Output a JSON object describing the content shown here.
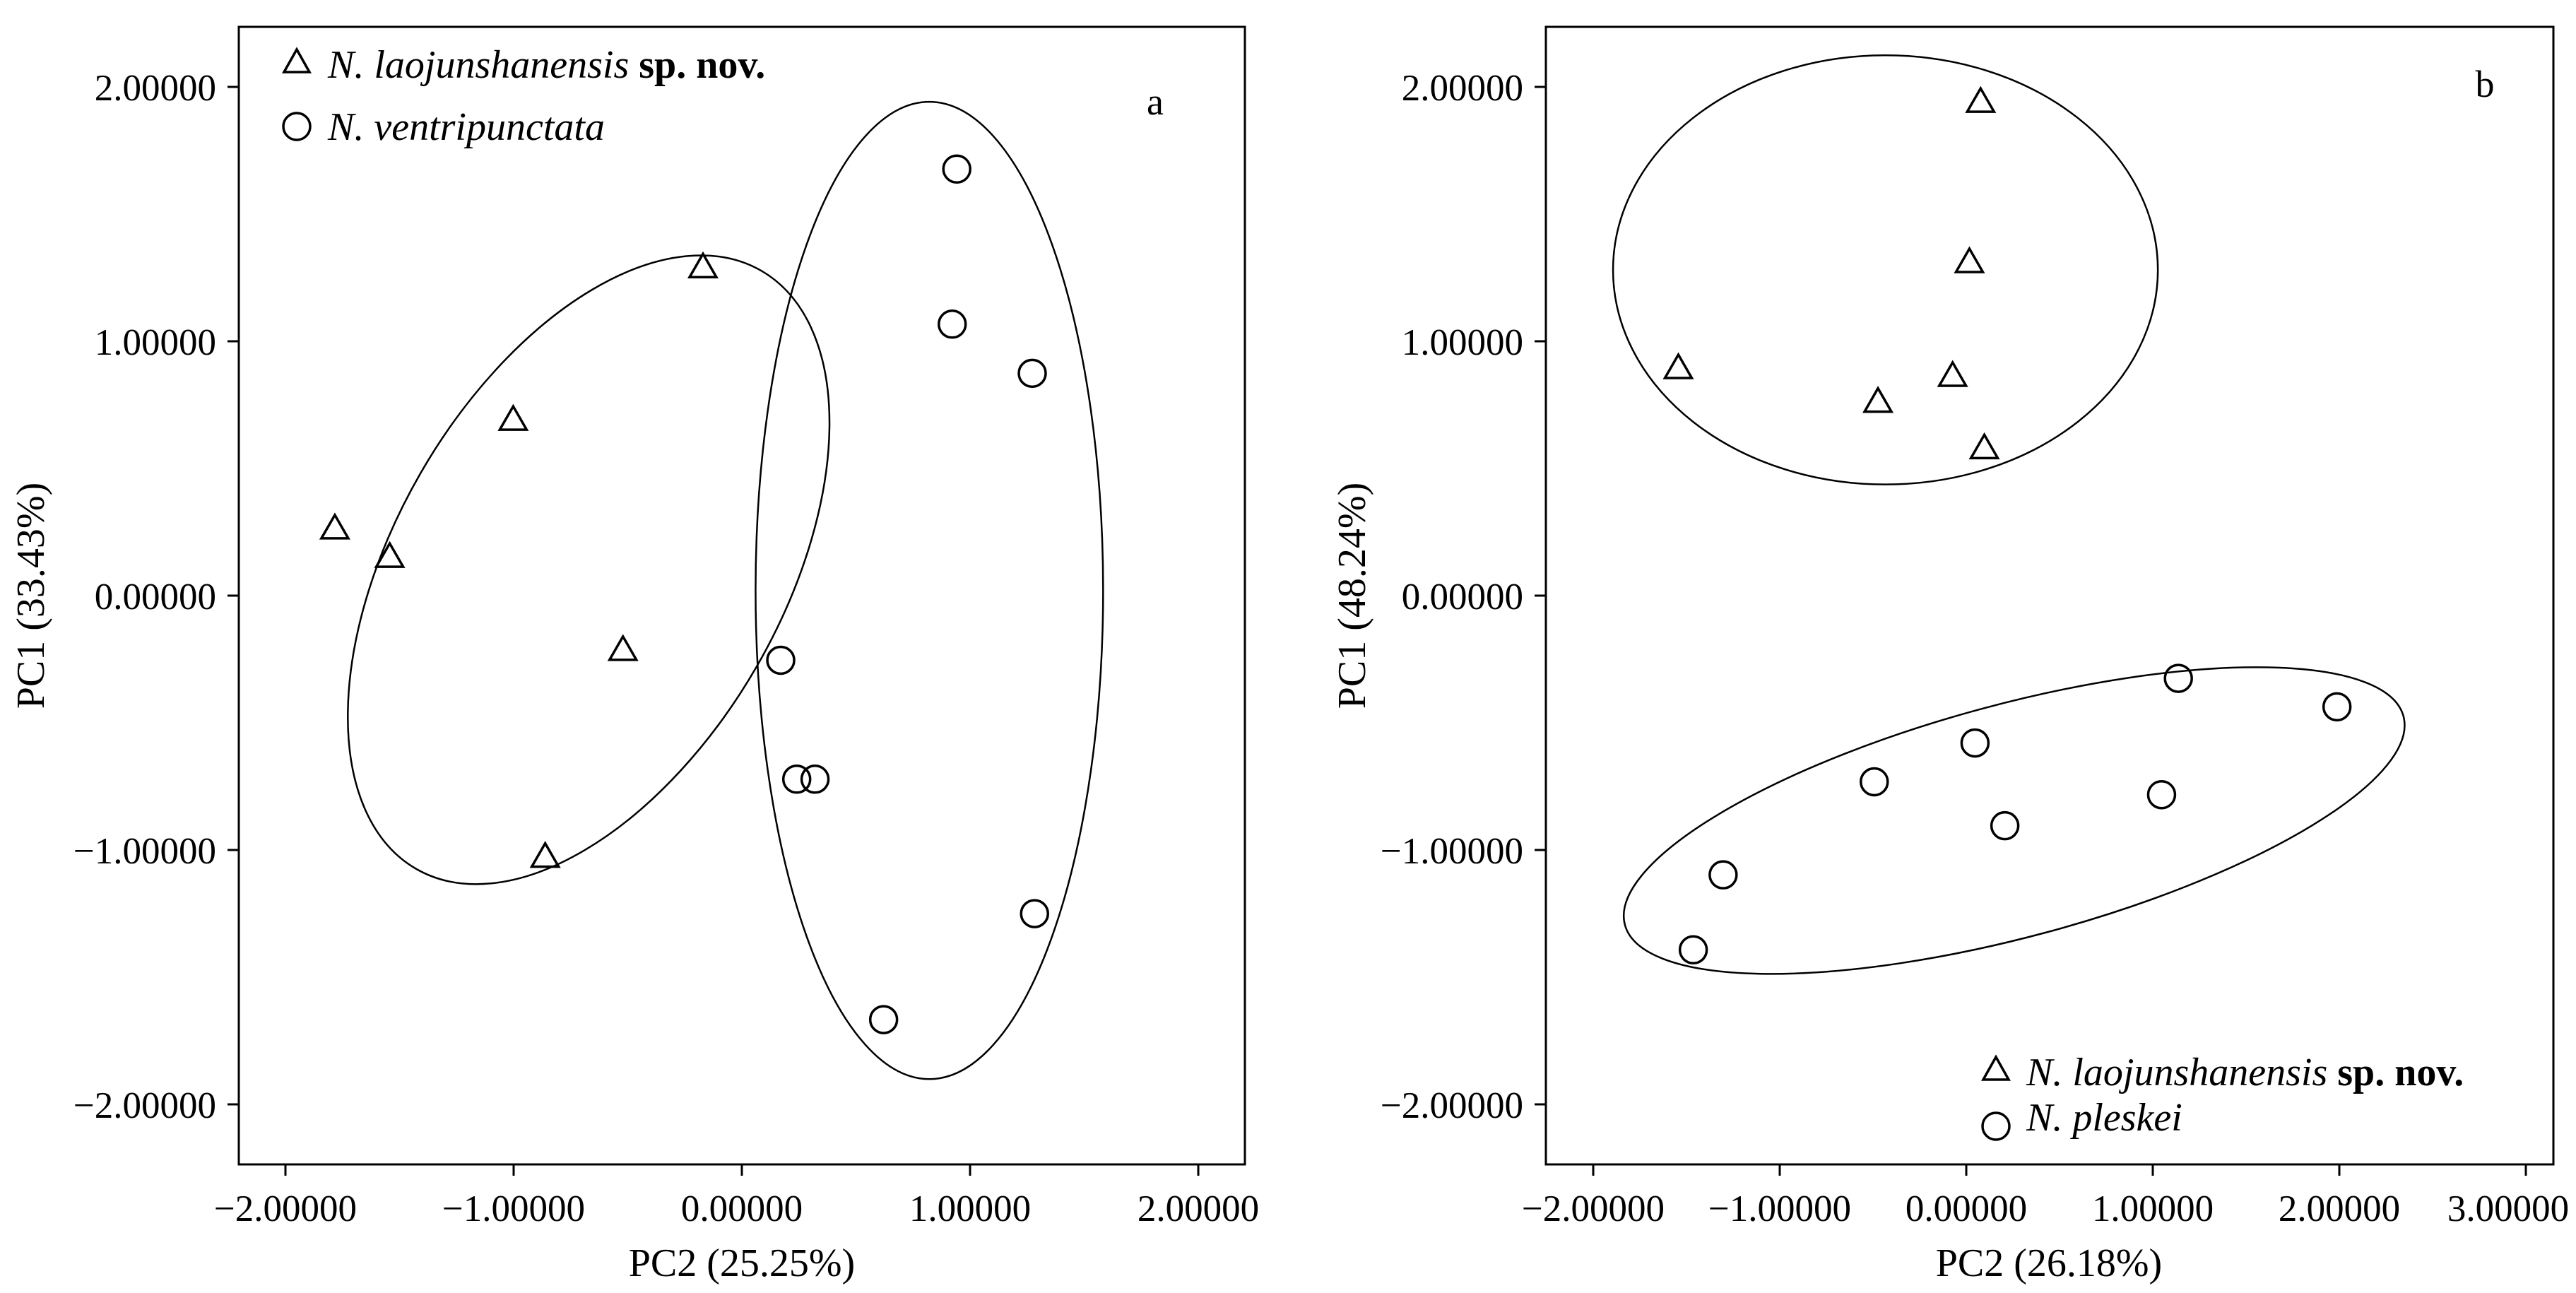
{
  "chart_data": [
    {
      "type": "scatter",
      "panel_label": "a",
      "xlabel": "PC2 (25.25%)",
      "ylabel": "PC1 (33.43%)",
      "xlim": [
        -2.2,
        2.2
      ],
      "ylim": [
        -2.2,
        2.2
      ],
      "x_ticks": [
        -2,
        -1,
        0,
        1,
        2
      ],
      "y_ticks": [
        -2,
        -1,
        0,
        1,
        2
      ],
      "x_tick_labels": [
        "−2.00000",
        "−1.00000",
        "0.00000",
        "1.00000",
        "2.00000"
      ],
      "y_tick_labels": [
        "−2.00000",
        "−1.00000",
        "0.00000",
        "1.00000",
        "2.00000"
      ],
      "grid": false,
      "legend_position": "top-left",
      "series": [
        {
          "name": "N. laojunshanensis sp. nov.",
          "name_italic": "N. laojunshanensis",
          "name_bold": "sp. nov.",
          "marker": "triangle",
          "points": [
            [
              -0.17,
              1.27
            ],
            [
              -1.0,
              0.68
            ],
            [
              -1.78,
              0.26
            ],
            [
              -1.54,
              0.15
            ],
            [
              -0.52,
              -0.21
            ],
            [
              -0.86,
              -1.01
            ]
          ],
          "ellipse": {
            "cx": -0.67,
            "cy": 0.1,
            "rx": 1.51,
            "ry": 0.75,
            "angle_deg": 60
          }
        },
        {
          "name": "N. ventripunctata",
          "name_italic": "N. ventripunctata",
          "name_bold": "",
          "marker": "circle",
          "points": [
            [
              0.94,
              1.65
            ],
            [
              0.92,
              1.05
            ],
            [
              1.27,
              0.86
            ],
            [
              0.17,
              -0.25
            ],
            [
              0.24,
              -0.71
            ],
            [
              0.32,
              -0.71
            ],
            [
              1.28,
              -1.23
            ],
            [
              0.62,
              -1.64
            ]
          ],
          "ellipse": {
            "cx": 0.82,
            "cy": 0.02,
            "rx": 0.76,
            "ry": 1.89,
            "angle_deg": 0
          }
        }
      ]
    },
    {
      "type": "scatter",
      "panel_label": "b",
      "xlabel": "PC2 (26.18%)",
      "ylabel": "PC1 (48.24%)",
      "xlim": [
        -2.2,
        3.2
      ],
      "ylim": [
        -2.2,
        2.2
      ],
      "x_ticks": [
        -2,
        -1,
        0,
        1,
        2,
        3
      ],
      "y_ticks": [
        -2,
        -1,
        0,
        1,
        2
      ],
      "x_tick_labels": [
        "−2.00000",
        "−1.00000",
        "0.00000",
        "1.00000",
        "2.00000",
        "3.00000"
      ],
      "y_tick_labels": [
        "−2.00000",
        "−1.00000",
        "0.00000",
        "1.00000",
        "2.00000"
      ],
      "grid": false,
      "legend_position": "bottom-right",
      "series": [
        {
          "name": "N. laojunshanensis sp. nov.",
          "name_italic": "N. laojunshanensis",
          "name_bold": "sp. nov.",
          "marker": "triangle",
          "points": [
            [
              0.13,
              1.91
            ],
            [
              0.07,
              1.29
            ],
            [
              -1.49,
              0.88
            ],
            [
              -0.42,
              0.75
            ],
            [
              -0.02,
              0.85
            ],
            [
              0.15,
              0.57
            ]
          ],
          "ellipse": {
            "cx": -0.38,
            "cy": 1.26,
            "rx": 1.46,
            "ry": 0.83,
            "angle_deg": 0
          }
        },
        {
          "name": "N. pleskei",
          "name_italic": "N. pleskei",
          "name_bold": "",
          "marker": "circle",
          "points": [
            [
              1.19,
              -0.32
            ],
            [
              2.04,
              -0.43
            ],
            [
              0.1,
              -0.57
            ],
            [
              -0.44,
              -0.72
            ],
            [
              1.1,
              -0.77
            ],
            [
              0.26,
              -0.89
            ],
            [
              -1.25,
              -1.08
            ],
            [
              -1.41,
              -1.37
            ]
          ],
          "ellipse": {
            "cx": 0.31,
            "cy": -0.87,
            "rx": 2.16,
            "ry": 0.45,
            "angle_deg": 15
          }
        }
      ]
    }
  ]
}
